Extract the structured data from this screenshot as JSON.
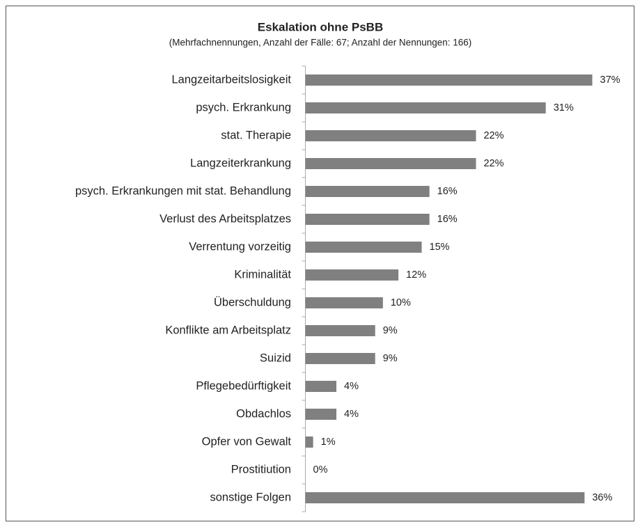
{
  "chart_data": {
    "type": "bar",
    "orientation": "horizontal",
    "title": "Eskalation ohne PsBB",
    "subtitle": "(Mehrfachnennungen, Anzahl der Fälle: 67; Anzahl der Nennungen: 166)",
    "categories": [
      "Langzeitarbeitslosigkeit",
      "psych. Erkrankung",
      "stat. Therapie",
      "Langzeiterkrankung",
      "psych. Erkrankungen mit stat. Behandlung",
      "Verlust des Arbeitsplatzes",
      "Verrentung vorzeitig",
      "Kriminalität",
      "Überschuldung",
      "Konflikte am Arbeitsplatz",
      "Suizid",
      "Pflegebedürftigkeit",
      "Obdachlos",
      "Opfer von Gewalt",
      "Prostitiution",
      "sonstige Folgen"
    ],
    "values": [
      37,
      31,
      22,
      22,
      16,
      16,
      15,
      12,
      10,
      9,
      9,
      4,
      4,
      1,
      0,
      36
    ],
    "value_labels": [
      "37%",
      "31%",
      "22%",
      "22%",
      "16%",
      "16%",
      "15%",
      "12%",
      "10%",
      "9%",
      "9%",
      "4%",
      "4%",
      "1%",
      "0%",
      "36%"
    ],
    "color": "#808080"
  }
}
